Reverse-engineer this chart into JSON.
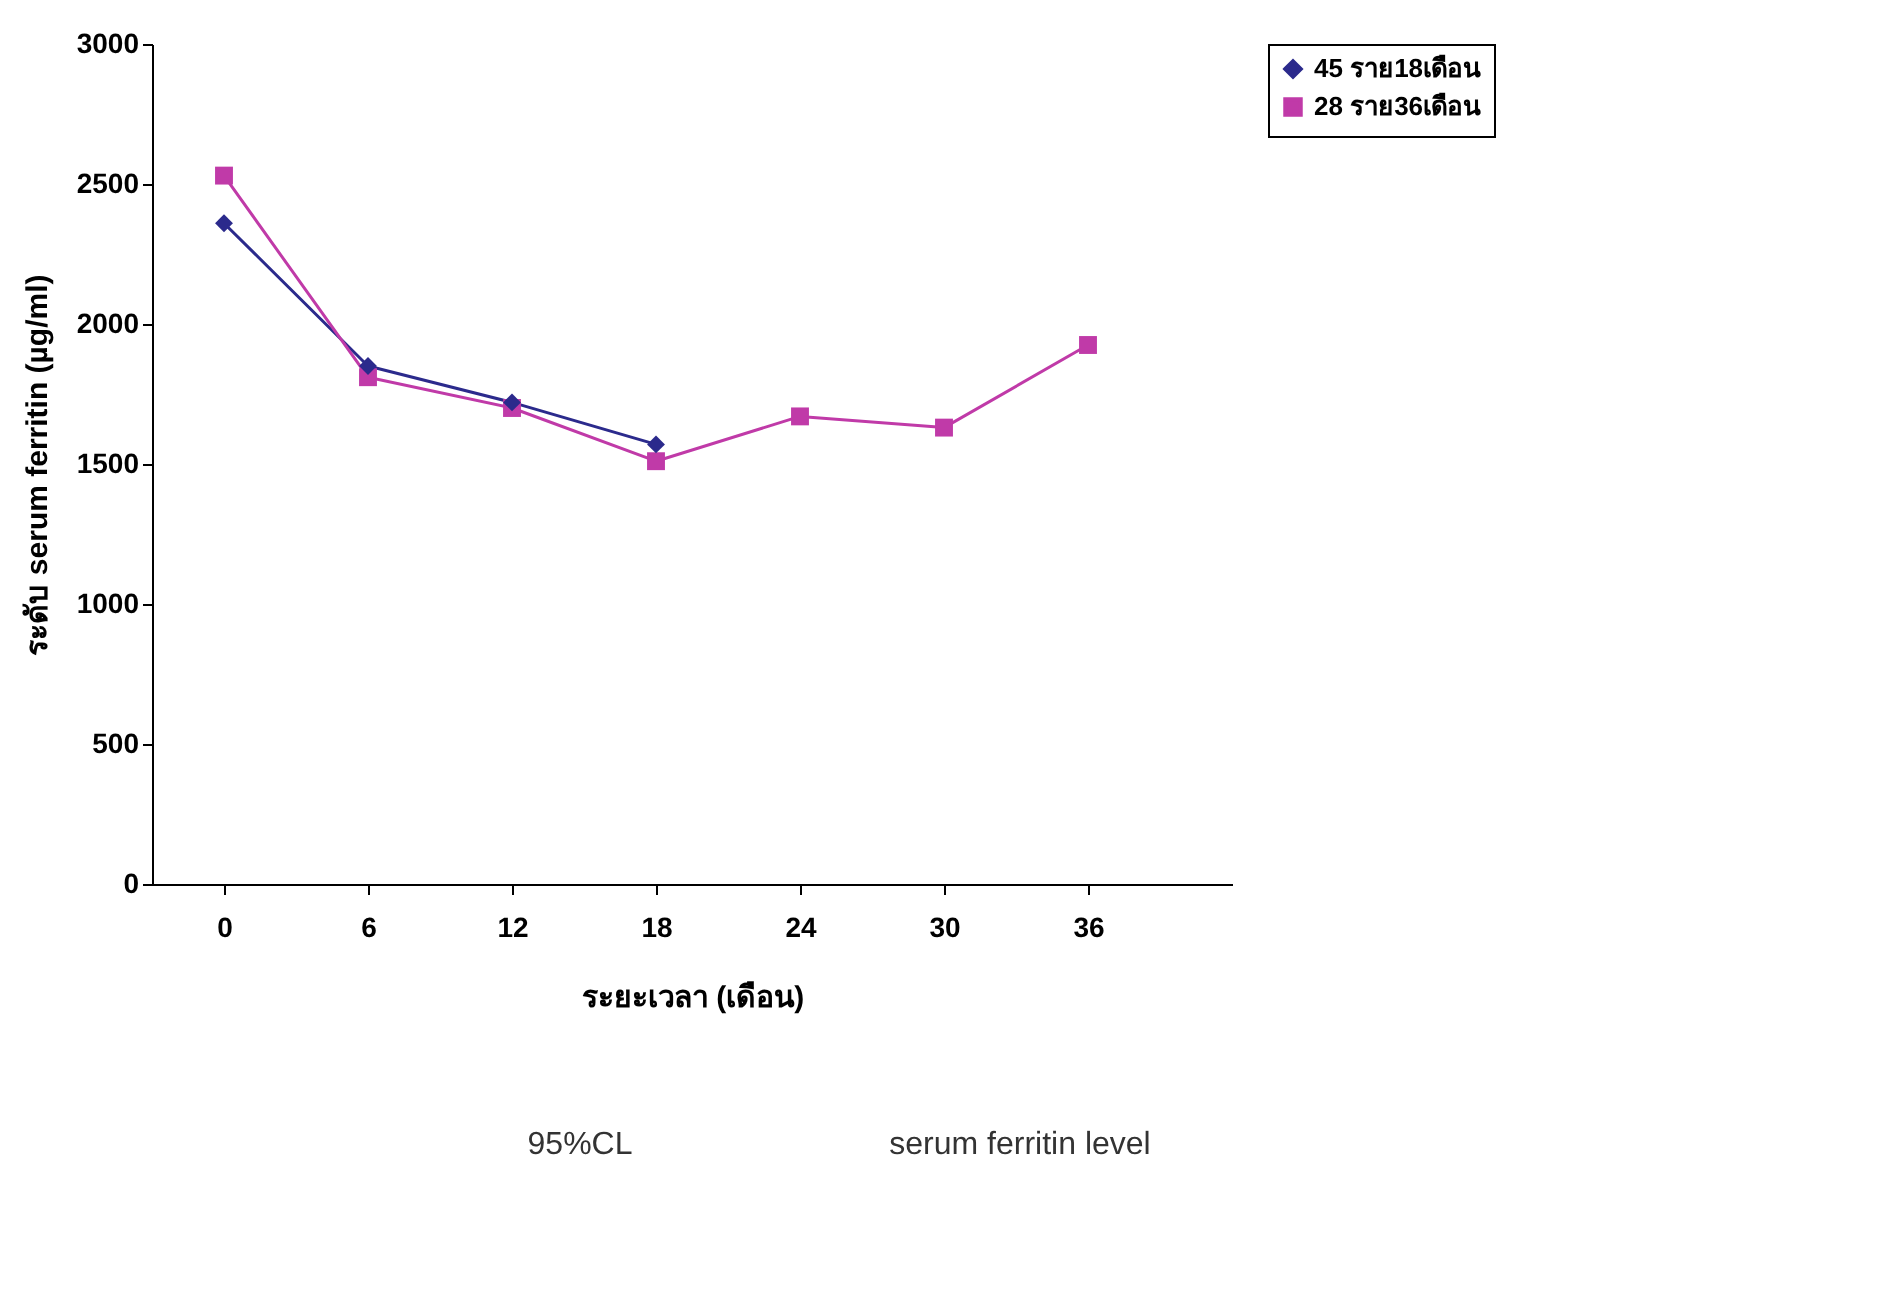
{
  "chart_data": {
    "type": "line",
    "xlabel": "ระยะเวลา (เดือน)",
    "ylabel": "ระดับ serum ferritin  (µg/ml)",
    "x": [
      0,
      6,
      12,
      18,
      24,
      30,
      36
    ],
    "series": [
      {
        "name": "45 ราย18เดือน",
        "color": "#2b2a8c",
        "marker": "diamond",
        "values": [
          2360,
          1850,
          1720,
          1570,
          null,
          null,
          null
        ]
      },
      {
        "name": "28 ราย36เดือน",
        "color": "#c03aa8",
        "marker": "square",
        "values": [
          2530,
          1810,
          1700,
          1510,
          1670,
          1630,
          1925
        ]
      }
    ],
    "xlim": [
      -3,
      42
    ],
    "xticks": [
      0,
      6,
      12,
      18,
      24,
      30,
      36
    ],
    "ylim": [
      0,
      3000
    ],
    "yticks": [
      0,
      500,
      1000,
      1500,
      2000,
      2500,
      3000
    ],
    "grid": false,
    "legend": "right",
    "line_style": "solid",
    "annotations": [
      "95%CL",
      "serum ferritin level"
    ]
  }
}
